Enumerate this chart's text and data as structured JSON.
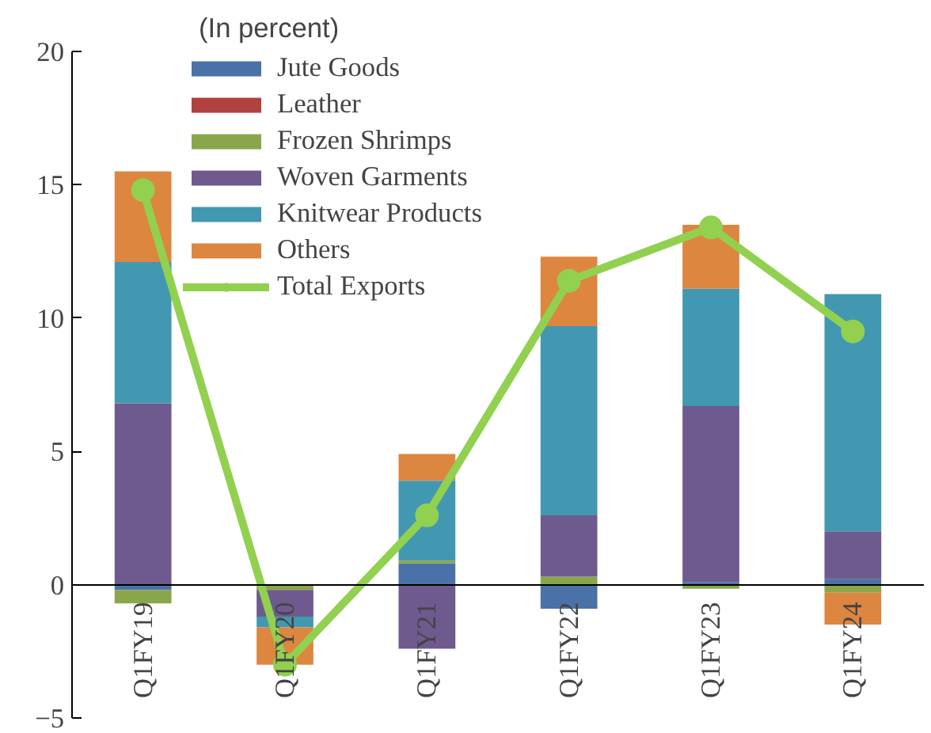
{
  "chart_data": {
    "type": "bar",
    "stacked": true,
    "subtitle": "(In percent)",
    "categories": [
      "Q1FY19",
      "Q1FY20",
      "Q1FY21",
      "Q1FY22",
      "Q1FY23",
      "Q1FY24"
    ],
    "series": [
      {
        "name": "Jute Goods",
        "color": "#4a72a8",
        "values": [
          -0.2,
          0,
          0.8,
          -0.9,
          0.1,
          0.2
        ]
      },
      {
        "name": "Leather",
        "color": "#b0413e",
        "values": [
          0,
          0,
          0,
          0,
          0,
          0
        ]
      },
      {
        "name": "Frozen Shrimps",
        "color": "#8aa64a",
        "values": [
          -0.5,
          -0.2,
          0.1,
          0.3,
          -0.15,
          -0.3
        ]
      },
      {
        "name": "Woven Garments",
        "color": "#6e5a8e",
        "values": [
          6.8,
          -1.0,
          -2.4,
          2.3,
          6.6,
          1.8
        ]
      },
      {
        "name": "Knitwear Products",
        "color": "#4298b0",
        "values": [
          5.3,
          -0.4,
          3.0,
          7.1,
          4.4,
          8.9
        ]
      },
      {
        "name": "Others",
        "color": "#dd8640",
        "values": [
          3.4,
          -1.4,
          1.0,
          2.6,
          2.4,
          -1.2
        ]
      },
      {
        "name": "Total Exports",
        "type": "line",
        "color": "#92d050",
        "values": [
          14.8,
          -3.0,
          2.6,
          11.4,
          13.4,
          9.5
        ]
      }
    ],
    "ylim": [
      -5,
      20
    ],
    "yticks": [
      -5,
      0,
      5,
      10,
      15,
      20
    ],
    "grid": false,
    "legend": "top left",
    "marker": "circle"
  }
}
